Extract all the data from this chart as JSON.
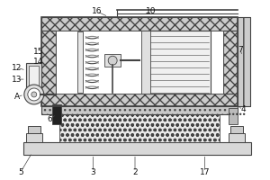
{
  "bg_color": "#ffffff",
  "line_color": "#444444",
  "figsize": [
    3.0,
    2.0
  ],
  "dpi": 100,
  "labels": [
    [
      "2",
      150,
      192
    ],
    [
      "3",
      103,
      192
    ],
    [
      "4",
      271,
      122
    ],
    [
      "5",
      22,
      192
    ],
    [
      "6",
      55,
      133
    ],
    [
      "7",
      268,
      55
    ],
    [
      "10",
      168,
      12
    ],
    [
      "12",
      18,
      75
    ],
    [
      "13",
      18,
      88
    ],
    [
      "14",
      42,
      68
    ],
    [
      "15",
      42,
      57
    ],
    [
      "16",
      107,
      12
    ],
    [
      "17",
      228,
      192
    ],
    [
      "A",
      18,
      108
    ]
  ]
}
